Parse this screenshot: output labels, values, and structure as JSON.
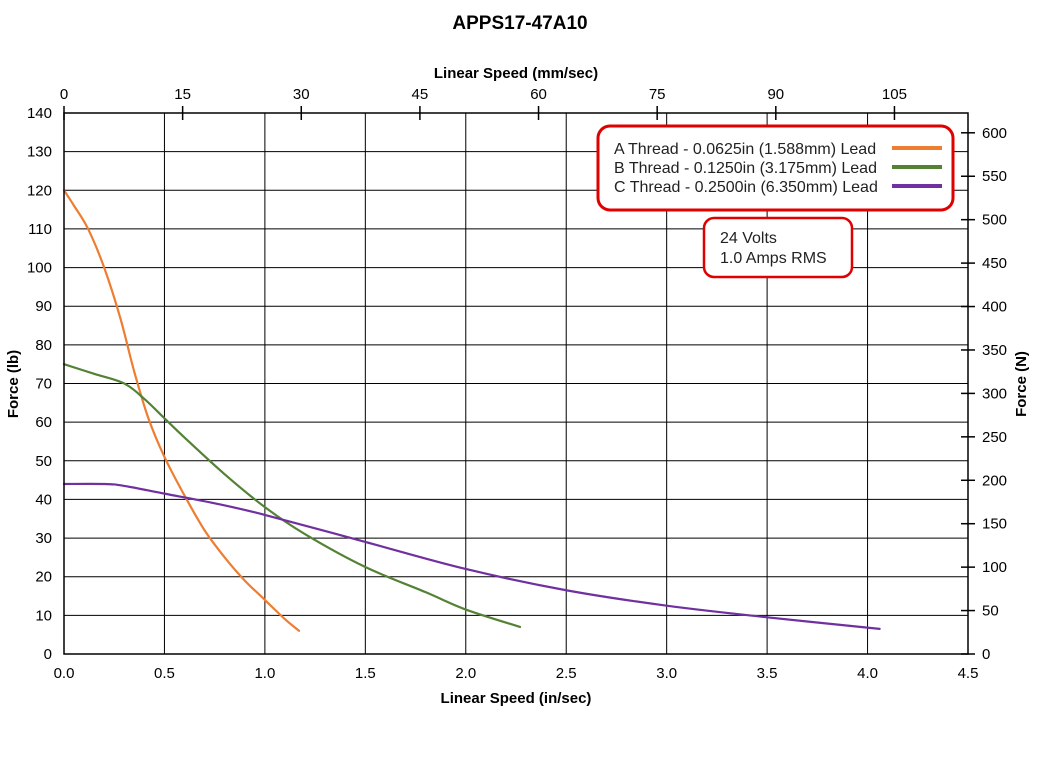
{
  "chart_data": {
    "type": "line",
    "title": "APPS17-47A10",
    "xlabel": "Linear Speed (in/sec)",
    "x2label": "Linear Speed (mm/sec)",
    "ylabel": "Force (lb)",
    "y2label": "Force (N)",
    "xlim": [
      0,
      4.5
    ],
    "ylim": [
      0,
      140
    ],
    "x2lim": [
      0,
      114.3
    ],
    "y2lim": [
      0,
      622.8
    ],
    "x_ticks": [
      "0.0",
      "0.5",
      "1.0",
      "1.5",
      "2.0",
      "2.5",
      "3.0",
      "3.5",
      "4.0",
      "4.5"
    ],
    "y_ticks": [
      "0",
      "10",
      "20",
      "30",
      "40",
      "50",
      "60",
      "70",
      "80",
      "90",
      "100",
      "110",
      "120",
      "130",
      "140"
    ],
    "x2_ticks": [
      "0",
      "15",
      "30",
      "45",
      "60",
      "75",
      "90",
      "105"
    ],
    "y2_ticks": [
      "0",
      "50",
      "100",
      "150",
      "200",
      "250",
      "300",
      "350",
      "400",
      "450",
      "500",
      "550",
      "600"
    ],
    "grid": true,
    "legend_position": "top-right",
    "series": [
      {
        "name": "A Thread - 0.0625in (1.588mm) Lead",
        "color": "#ED7D31",
        "x": [
          0.0,
          0.05,
          0.12,
          0.2,
          0.28,
          0.35,
          0.42,
          0.5,
          0.6,
          0.7,
          0.8,
          0.9,
          1.0,
          1.1,
          1.17
        ],
        "y": [
          120,
          116,
          110,
          100,
          87,
          73,
          61,
          51,
          41,
          32,
          25,
          19,
          14,
          9,
          6
        ]
      },
      {
        "name": "B Thread - 0.1250in (3.175mm) Lead",
        "color": "#548235",
        "x": [
          0.0,
          0.15,
          0.3,
          0.4,
          0.5,
          0.6,
          0.8,
          1.0,
          1.2,
          1.5,
          1.8,
          2.0,
          2.27
        ],
        "y": [
          75,
          72.5,
          70,
          66,
          61,
          56,
          46.5,
          38,
          31,
          22.5,
          16,
          11.5,
          7
        ]
      },
      {
        "name": "C Thread - 0.2500in (6.350mm) Lead",
        "color": "#7030A0",
        "x": [
          0.0,
          0.2,
          0.3,
          0.5,
          0.75,
          1.0,
          1.5,
          2.0,
          2.5,
          3.0,
          3.5,
          4.06
        ],
        "y": [
          44,
          44,
          43.5,
          41.5,
          39,
          36,
          29,
          22,
          16.5,
          12.5,
          9.5,
          6.5
        ]
      }
    ],
    "annotation": {
      "lines": [
        "24 Volts",
        "1.0 Amps RMS"
      ]
    },
    "colors": {
      "box_border": "#E00000"
    }
  }
}
